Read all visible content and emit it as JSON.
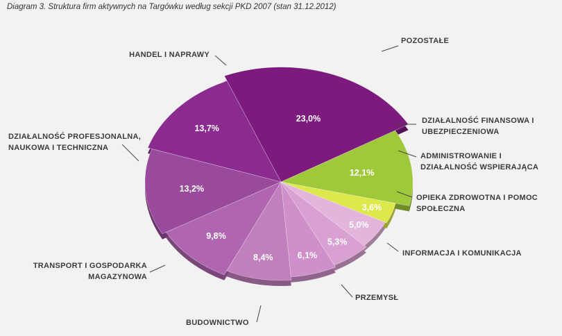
{
  "caption": "Diagram 3. Struktura firm aktywnych na Targówku według sekcji PKD 2007 (stan 31.12.2012)",
  "chart_data": {
    "type": "pie",
    "slices": [
      {
        "label": "POZOSTAŁE",
        "display": "12,1%",
        "value": 12.1,
        "color": "#9fc83a"
      },
      {
        "label": "DZIAŁALNOŚĆ FINANSOWA I UBEZPIECZENIOWA",
        "display": "3,6%",
        "value": 3.6,
        "color": "#dde84a"
      },
      {
        "label": "ADMINISTROWANIE I DZIAŁALNOŚĆ WSPIERAJĄCA",
        "display": "5,0%",
        "value": 5.0,
        "color": "#e3b4dc"
      },
      {
        "label": "OPIEKA ZDROWOTNA I POMOC SPOŁECZNA",
        "display": "5,3%",
        "value": 5.3,
        "color": "#d9a1d2"
      },
      {
        "label": "INFORMACJA I KOMUNIKACJA",
        "display": "6,1%",
        "value": 6.1,
        "color": "#cf8fcb"
      },
      {
        "label": "PRZEMYSŁ",
        "display": "8,4%",
        "value": 8.4,
        "color": "#c27fbd"
      },
      {
        "label": "BUDOWNICTWO",
        "display": "9,8%",
        "value": 9.8,
        "color": "#b065b0"
      },
      {
        "label": "TRANSPORT I GOSPODARKA MAGAZYNOWA",
        "display": "13,2%",
        "value": 13.2,
        "color": "#9a4a9c"
      },
      {
        "label": "DZIAŁALNOŚĆ PROFESJONALNA, NAUKOWA I TECHNICZNA",
        "display": "13,7%",
        "value": 13.7,
        "color": "#8b2b90"
      },
      {
        "label": "HANDEL I NAPRAWY",
        "display": "23,0%",
        "value": 23.0,
        "color": "#7c1a7d"
      }
    ]
  }
}
